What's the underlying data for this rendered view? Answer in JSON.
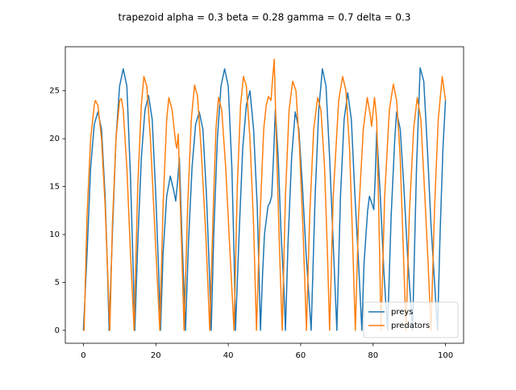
{
  "chart_data": {
    "type": "line",
    "title": "trapezoid alpha = 0.3 beta = 0.28 gamma = 0.7 delta = 0.3",
    "xlim": [
      -5,
      105
    ],
    "ylim": [
      -1.35,
      29.6
    ],
    "xticks": [
      0,
      20,
      40,
      60,
      80,
      100
    ],
    "yticks": [
      0,
      5,
      10,
      15,
      20,
      25
    ],
    "legend": "lower right",
    "series": [
      {
        "name": "preys",
        "color": "#1f77b4",
        "x": [
          0,
          1,
          2,
          3,
          4,
          5,
          6,
          6.6,
          7.1,
          8,
          9,
          10,
          11,
          12,
          13,
          13.7,
          14.2,
          15,
          16,
          17,
          18,
          19,
          20,
          20.8,
          21.3,
          22,
          23,
          24,
          25,
          25.5,
          26,
          26.5,
          27.2,
          27.7,
          28.2,
          29,
          30,
          31,
          32,
          33,
          34,
          34.8,
          35.3,
          36,
          37,
          38,
          39,
          40,
          41,
          41.6,
          42,
          43,
          44,
          45,
          46,
          47,
          48,
          48.5,
          48.9,
          49.5,
          50,
          51,
          51.5,
          52,
          52.5,
          53,
          53.8,
          54.6,
          55.3,
          55.8,
          56.5,
          57.5,
          58.5,
          59.5,
          60.5,
          61.5,
          62.9,
          64,
          65,
          66,
          67,
          68,
          69,
          70,
          71,
          72,
          73,
          74,
          75,
          76,
          76.9,
          77.5,
          78.5,
          79,
          79.7,
          80.2,
          80.6,
          81,
          82,
          83,
          84,
          85,
          86,
          86.5,
          87.5,
          88.5,
          89.5,
          90.9,
          92,
          93,
          94,
          95,
          96,
          97.8,
          98.5,
          99.3,
          100
        ],
        "values": [
          0,
          8,
          17,
          21.5,
          22.8,
          21,
          14,
          7,
          0,
          10,
          20,
          25.5,
          27.3,
          25.5,
          16,
          7,
          0,
          9,
          18,
          23,
          24.5,
          22,
          14,
          6,
          0,
          8,
          14,
          16.1,
          14.5,
          13.5,
          15.5,
          18,
          10,
          5,
          0,
          9,
          17,
          21.5,
          22.8,
          21,
          14,
          6,
          0,
          10,
          20,
          25.5,
          27.3,
          25.5,
          17,
          8,
          0,
          10,
          19,
          23.5,
          25,
          21,
          13,
          6,
          0,
          6,
          10,
          13,
          13.3,
          14,
          18,
          23,
          18,
          10,
          5,
          0,
          9,
          18,
          22.8,
          21,
          15,
          8,
          0,
          14,
          23,
          27.3,
          25.5,
          18,
          9,
          0,
          14,
          22,
          24.8,
          22,
          14,
          7,
          0,
          7,
          12.5,
          14,
          13.2,
          12.6,
          16,
          20.8,
          14,
          6,
          0,
          12,
          20,
          22.8,
          21,
          15,
          8,
          0,
          17,
          27.4,
          26,
          19,
          11,
          0,
          10,
          19,
          24
        ]
      },
      {
        "name": "predators",
        "color": "#ff7f0e",
        "x": [
          0,
          0.2,
          1,
          2,
          3,
          3.3,
          4,
          5,
          6,
          7.3,
          8,
          9,
          10,
          10.5,
          11,
          12,
          13,
          14,
          15,
          16,
          16.7,
          17.5,
          18.5,
          19.8,
          21.1,
          22,
          23,
          23.6,
          24.5,
          25.5,
          25.8,
          26.2,
          26.6,
          27.2,
          27.8,
          28.8,
          29.8,
          30.7,
          31.5,
          32.5,
          33.8,
          34.9,
          35.8,
          36.6,
          37.3,
          38.2,
          39.3,
          40.5,
          41.6,
          42.5,
          43.4,
          44.2,
          45,
          46,
          47,
          47.8,
          48.8,
          49.8,
          50.5,
          51.1,
          51.8,
          52.2,
          52.7,
          53,
          53.5,
          54.2,
          54.9,
          55.8,
          56.8,
          57.8,
          58.7,
          59.7,
          60.7,
          61.6,
          62.5,
          63.6,
          64.7,
          65.6,
          66.6,
          67.4,
          68,
          69,
          70.5,
          71.6,
          72.5,
          73.5,
          74.3,
          75.1,
          76,
          77.3,
          78.4,
          79.2,
          79.6,
          80.4,
          81,
          81.6,
          82.2,
          83.2,
          84.5,
          85.6,
          86.5,
          87.5,
          88.3,
          89.1,
          90,
          91.2,
          92.2,
          93.2,
          94.3,
          95.2,
          96,
          97,
          98,
          99.1,
          100
        ],
        "values": [
          0,
          0,
          12,
          20,
          23.5,
          24,
          23.5,
          20,
          13,
          0,
          11,
          20,
          24,
          24.2,
          23,
          17,
          8,
          0,
          15,
          23.5,
          26.5,
          25.5,
          20,
          10,
          0,
          13,
          22,
          24.3,
          23,
          19.5,
          19,
          20.5,
          15,
          8,
          0,
          13,
          22,
          25.6,
          24.5,
          19,
          10,
          0,
          12,
          21,
          24.3,
          23,
          17,
          8,
          0,
          15,
          23.5,
          26.5,
          25.5,
          20,
          11,
          0,
          12,
          21,
          23.5,
          24.4,
          24,
          26,
          28.3,
          24,
          17,
          8,
          0,
          14,
          23,
          26,
          25,
          19,
          10,
          0,
          12,
          21,
          24.3,
          23,
          17,
          8,
          0,
          14,
          24,
          26.5,
          25,
          19,
          10,
          0,
          12,
          21,
          24.3,
          22.5,
          21.3,
          24.3,
          22,
          12,
          0,
          14,
          23,
          25.7,
          24,
          18,
          9,
          0,
          12,
          21,
          24.3,
          22,
          14,
          7,
          0,
          13,
          22,
          26.5,
          24
        ]
      }
    ]
  }
}
